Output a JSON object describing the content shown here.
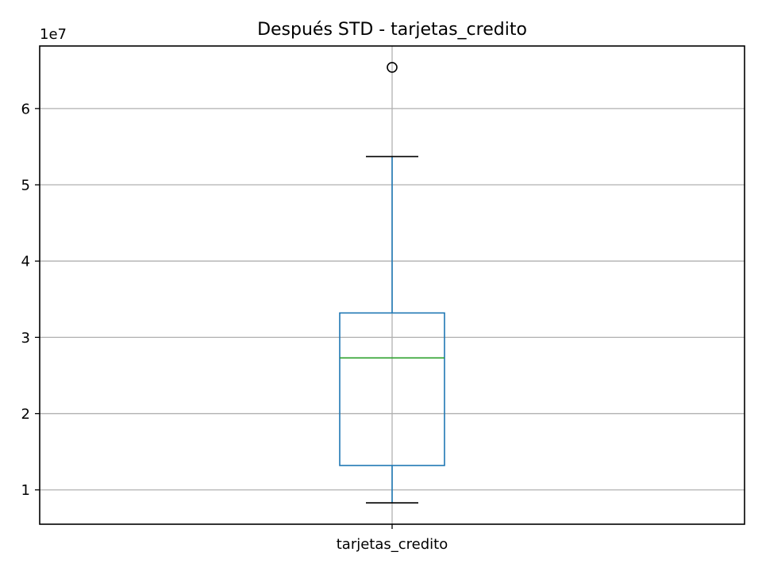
{
  "chart_data": {
    "type": "box",
    "title": "Después STD - tarjetas_credito",
    "xlabel": "",
    "ylabel": "",
    "y_offset_label": "1e7",
    "y_scale_factor": 10000000,
    "ylim": [
      5500000,
      68200000
    ],
    "yticks": [
      10000000,
      20000000,
      30000000,
      40000000,
      50000000,
      60000000
    ],
    "ytick_labels": [
      "1",
      "2",
      "3",
      "4",
      "5",
      "6"
    ],
    "grid": true,
    "categories": [
      "tarjetas_credito"
    ],
    "boxes": [
      {
        "name": "tarjetas_credito",
        "whisker_low": 8300000,
        "q1": 13200000,
        "median": 27300000,
        "q3": 33200000,
        "whisker_high": 53700000,
        "outliers": [
          65400000
        ]
      }
    ],
    "colors": {
      "box": "#1f77b4",
      "whisker": "#1f77b4",
      "median": "#2ca02c",
      "caps": "#000000",
      "outlier": "#000000",
      "grid": "#b0b0b0"
    }
  }
}
